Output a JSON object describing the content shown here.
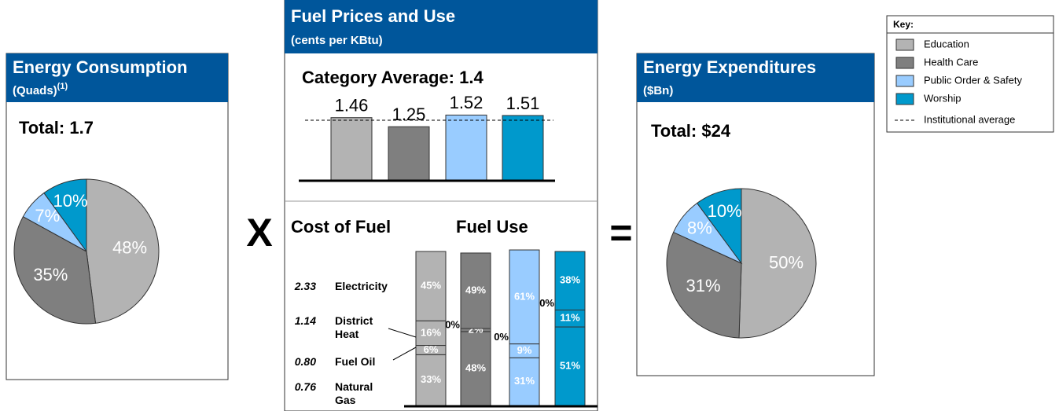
{
  "chart_data": [
    {
      "type": "pie",
      "title": "Energy Consumption",
      "subtitle": "(Quads)",
      "footnote_mark": "(1)",
      "total_label": "Total: 1.7",
      "categories": [
        "Education",
        "Health Care",
        "Public Order & Safety",
        "Worship"
      ],
      "values": [
        48,
        35,
        7,
        10
      ],
      "value_labels": [
        "48%",
        "35%",
        "7%",
        "10%"
      ],
      "colors": [
        "#b3b3b3",
        "#7f7f7f",
        "#99ccff",
        "#0099cc"
      ]
    },
    {
      "type": "bar",
      "title": "Fuel Prices and Use",
      "subtitle": "(cents per KBtu)",
      "annotation": "Category Average: 1.4",
      "average": 1.4,
      "categories": [
        "Education",
        "Health Care",
        "Public Order & Safety",
        "Worship"
      ],
      "values": [
        1.46,
        1.25,
        1.52,
        1.51
      ],
      "colors": [
        "#b3b3b3",
        "#7f7f7f",
        "#99ccff",
        "#0099cc"
      ],
      "ylim": [
        0,
        1.6
      ]
    },
    {
      "type": "stacked_bar",
      "title": "Fuel Use",
      "price_title": "Cost of Fuel",
      "categories": [
        "Education",
        "Health Care",
        "Public Order & Safety",
        "Worship"
      ],
      "colors": [
        "#b3b3b3",
        "#7f7f7f",
        "#99ccff",
        "#0099cc"
      ],
      "ylim": [
        0,
        100
      ],
      "series": [
        {
          "name": "Natural Gas",
          "price": 0.76,
          "values": [
            33,
            48,
            31,
            51
          ],
          "value_labels": [
            "33%",
            "48%",
            "31%",
            "51%"
          ]
        },
        {
          "name": "Fuel Oil",
          "price": 0.8,
          "price_label": "0.80",
          "values": [
            6,
            0,
            9,
            11
          ],
          "value_labels": [
            "6%",
            "0%",
            "9%",
            "11%"
          ]
        },
        {
          "name": "District Heat",
          "price": 1.14,
          "values": [
            16,
            2,
            0,
            0
          ],
          "value_labels": [
            "16%",
            "2%",
            "0%",
            "0%"
          ]
        },
        {
          "name": "Electricity",
          "price": 2.33,
          "values": [
            45,
            49,
            61,
            38
          ],
          "value_labels": [
            "45%",
            "49%",
            "61%",
            "38%"
          ]
        }
      ]
    },
    {
      "type": "pie",
      "title": "Energy Expenditures",
      "subtitle": "($Bn)",
      "total_label": "Total: $24",
      "categories": [
        "Education",
        "Health Care",
        "Public Order & Safety",
        "Worship"
      ],
      "values": [
        50,
        31,
        8,
        10
      ],
      "value_labels": [
        "50%",
        "31%",
        "8%",
        "10%"
      ],
      "colors": [
        "#b3b3b3",
        "#7f7f7f",
        "#99ccff",
        "#0099cc"
      ]
    }
  ],
  "key": {
    "title": "Key:",
    "average_label": "Institutional average"
  },
  "operators": {
    "times": "X",
    "equals": "="
  }
}
